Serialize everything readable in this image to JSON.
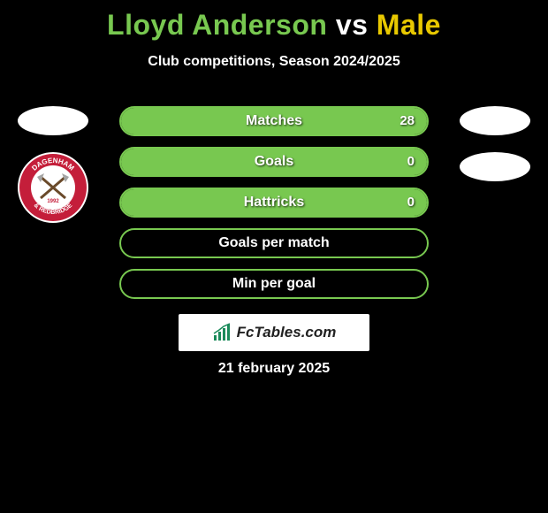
{
  "header": {
    "player1_name": "Lloyd Anderson",
    "player1_color": "#78c850",
    "vs_label": " vs ",
    "vs_color": "#ffffff",
    "player2_name": "Male",
    "player2_color": "#e8c800",
    "subtitle": "Club competitions, Season 2024/2025"
  },
  "players": {
    "left_placeholder_color": "#ffffff",
    "right_placeholder_color": "#ffffff",
    "badge": {
      "outer_color": "#ffffff",
      "ring_color": "#c41e3a",
      "inner_color": "#ffffff",
      "text_top": "DAGENHAM",
      "text_bottom": "& REDBRIDGE",
      "text_color": "#ffffff",
      "axe_color": "#6a4a2a",
      "blade_color": "#a5a5a5",
      "year": "1992",
      "year_color": "#c41e3a"
    }
  },
  "bars": {
    "type": "comparison-bars",
    "border_color": "#78c850",
    "fill_color": "#78c850",
    "text_color": "#ffffff",
    "background_color": "#000000",
    "items": [
      {
        "label": "Matches",
        "left_value": 28,
        "right_value": 0,
        "left_fill_pct": 100,
        "right_fill_pct": 0
      },
      {
        "label": "Goals",
        "left_value": 0,
        "right_value": 0,
        "left_fill_pct": 100,
        "right_fill_pct": 0
      },
      {
        "label": "Hattricks",
        "left_value": 0,
        "right_value": 0,
        "left_fill_pct": 100,
        "right_fill_pct": 0
      },
      {
        "label": "Goals per match",
        "left_value": "",
        "right_value": "",
        "left_fill_pct": 0,
        "right_fill_pct": 0
      },
      {
        "label": "Min per goal",
        "left_value": "",
        "right_value": "",
        "left_fill_pct": 0,
        "right_fill_pct": 0
      }
    ]
  },
  "branding": {
    "text": "FcTables.com",
    "background_color": "#ffffff",
    "text_color": "#222222",
    "icon_color": "#1a8a5a"
  },
  "date": {
    "text": "21 february 2025",
    "color": "#ffffff"
  }
}
